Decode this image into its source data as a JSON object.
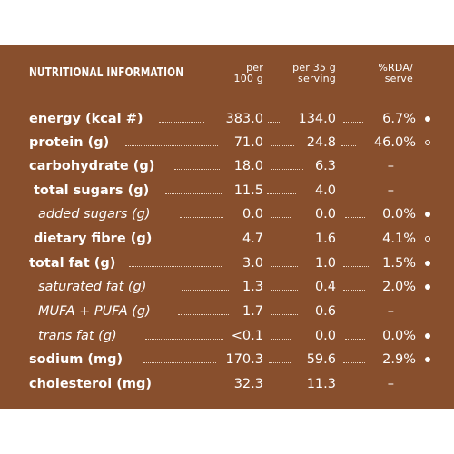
{
  "header": {
    "title": "NUTRITIONAL INFORMATION",
    "col_per100_line1": "per",
    "col_per100_line2": "100 g",
    "col_serving_line1": "per 35 g",
    "col_serving_line2": "serving",
    "col_rda_line1": "%RDA/",
    "col_rda_line2": "serve"
  },
  "colors": {
    "panel": "#884f2d",
    "text": "#ffffff"
  },
  "rows": [
    {
      "label": "energy (kcal #)",
      "per100": "383.0",
      "serving": "134.0",
      "rda": "6.7%",
      "mark": "filled"
    },
    {
      "label": "protein (g)",
      "per100": "71.0",
      "serving": "24.8",
      "rda": "46.0%",
      "mark": "hollow"
    },
    {
      "label": "carbohydrate (g)",
      "per100": "18.0",
      "serving": "6.3",
      "rda": "–",
      "mark": "none"
    },
    {
      "label": "total sugars (g)",
      "per100": "11.5",
      "serving": "4.0",
      "rda": "–",
      "mark": "none"
    },
    {
      "label": "added sugars (g)",
      "per100": "0.0",
      "serving": "0.0",
      "rda": "0.0%",
      "mark": "filled"
    },
    {
      "label": "dietary fibre (g)",
      "per100": "4.7",
      "serving": "1.6",
      "rda": "4.1%",
      "mark": "hollow"
    },
    {
      "label": "total fat (g)",
      "per100": "3.0",
      "serving": "1.0",
      "rda": "1.5%",
      "mark": "filled"
    },
    {
      "label": "saturated fat (g)",
      "per100": "1.3",
      "serving": "0.4",
      "rda": "2.0%",
      "mark": "filled"
    },
    {
      "label": "MUFA + PUFA (g)",
      "per100": "1.7",
      "serving": "0.6",
      "rda": "–",
      "mark": "none"
    },
    {
      "label": "trans fat (g)",
      "per100": "<0.1",
      "serving": "0.0",
      "rda": "0.0%",
      "mark": "filled"
    },
    {
      "label": "sodium (mg)",
      "per100": "170.3",
      "serving": "59.6",
      "rda": "2.9%",
      "mark": "filled"
    },
    {
      "label": "cholesterol (mg)",
      "per100": "32.3",
      "serving": "11.3",
      "rda": "–",
      "mark": "none"
    }
  ]
}
